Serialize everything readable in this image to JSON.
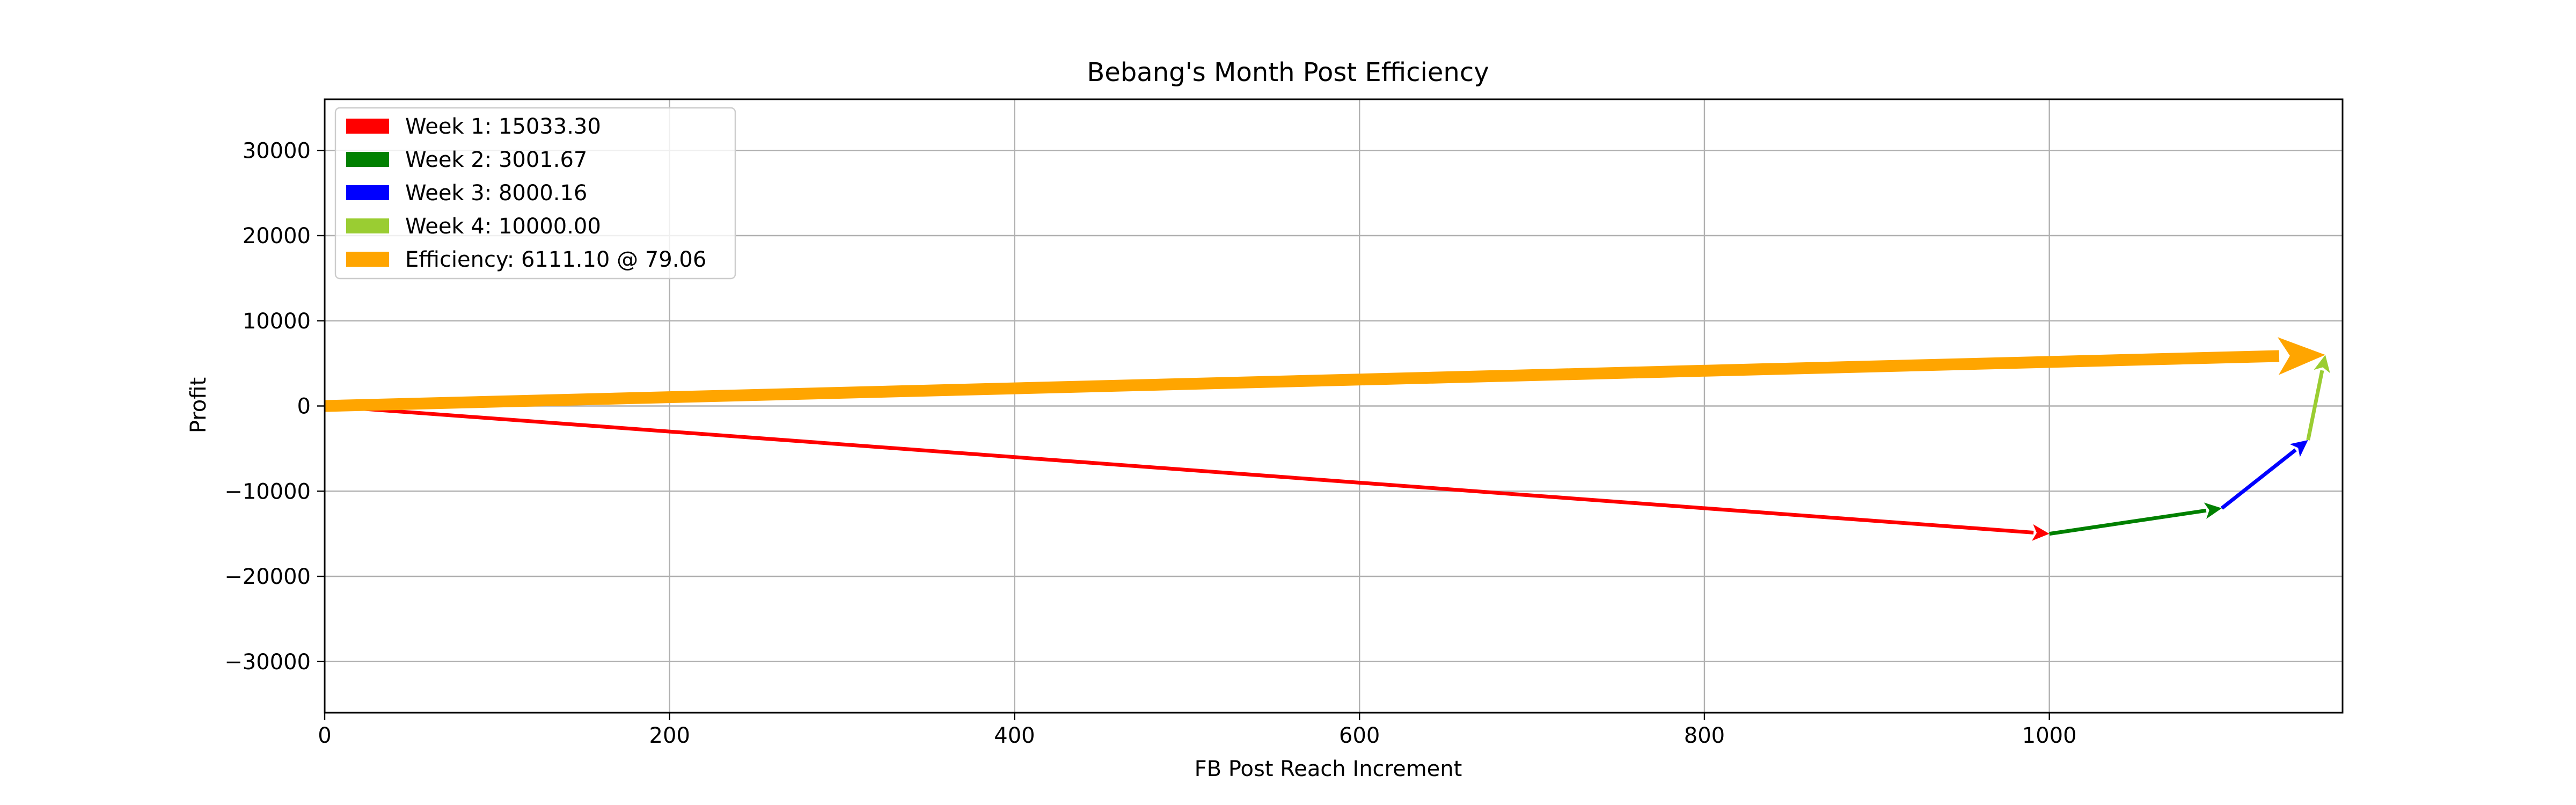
{
  "chart_data": {
    "type": "line",
    "title": "Bebang's Month Post Efficiency",
    "xlabel": "FB Post Reach Increment",
    "ylabel": "Profit",
    "xlim": [
      0,
      1170
    ],
    "ylim": [
      -36000,
      36000
    ],
    "grid": true,
    "legend_position": "top-left",
    "x_ticks": [
      0,
      200,
      400,
      600,
      800,
      1000
    ],
    "y_ticks": [
      30000,
      20000,
      10000,
      0,
      -10000,
      -20000,
      -30000
    ],
    "x_tick_labels": [
      "0",
      "200",
      "400",
      "600",
      "800",
      "1000"
    ],
    "y_tick_labels": [
      "30000",
      "20000",
      "10000",
      "0",
      "−10000",
      "−20000",
      "−30000"
    ],
    "series": [
      {
        "name": "Week 1: 15033.30",
        "color": "#ff0000",
        "width": 7,
        "x": [
          0,
          1000
        ],
        "y": [
          0,
          -15000
        ]
      },
      {
        "name": "Week 2: 3001.67",
        "color": "#008000",
        "width": 7,
        "x": [
          1000,
          1100
        ],
        "y": [
          -15000,
          -12000
        ]
      },
      {
        "name": "Week 3: 8000.16",
        "color": "#0000ff",
        "width": 7,
        "x": [
          1100,
          1150
        ],
        "y": [
          -12000,
          -4000
        ]
      },
      {
        "name": "Week 4: 10000.00",
        "color": "#9acd32",
        "width": 7,
        "x": [
          1150,
          1160
        ],
        "y": [
          -4000,
          6000
        ]
      },
      {
        "name": "Efficiency: 6111.10 @ 79.06",
        "color": "#ffa500",
        "width": 22,
        "x": [
          0,
          1160
        ],
        "y": [
          0,
          6000
        ]
      }
    ]
  }
}
